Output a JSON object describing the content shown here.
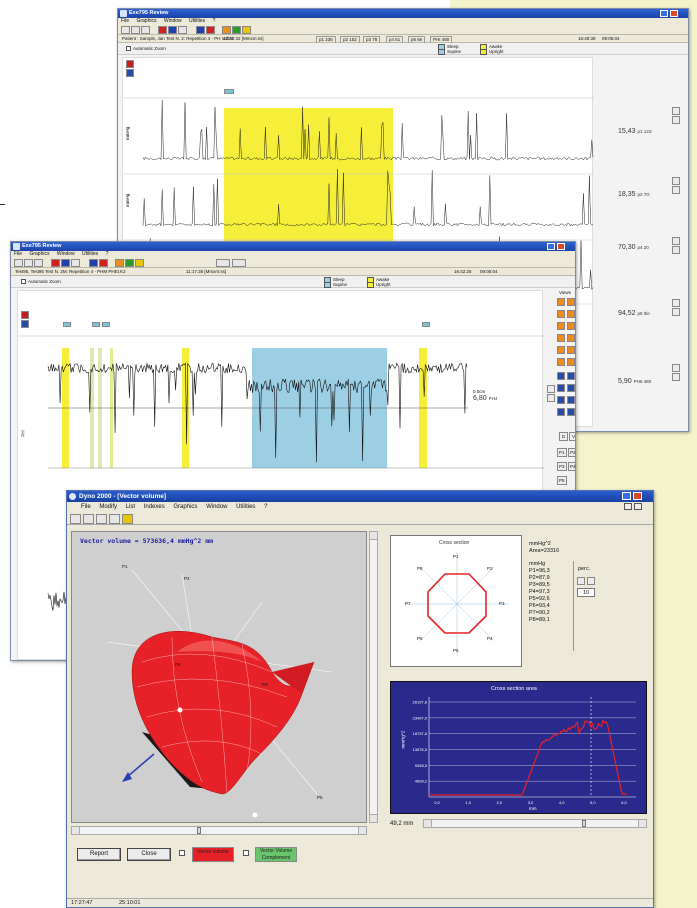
{
  "window1": {
    "title": "Exe795 Review",
    "menu": [
      "File",
      "Graphics",
      "Window",
      "Utilities",
      "?"
    ],
    "patient_info": "Patient : Sample, Jan Test N. 2: Repetition 4 - PH Voltar",
    "time1": "12:32:32 [Mmxm:ss]",
    "clock": "16:40:39",
    "date": "09:05:04",
    "sensor_tabs": [
      "p1 236",
      "p2 152",
      "p3 78",
      "p4 51",
      "p5 8e",
      "PHI 480"
    ],
    "automatic_zoom": "Automatic Zoom",
    "legend": {
      "sleep": "Sleep",
      "supine": "Supine",
      "awake": "Awake",
      "upright": "Upright"
    },
    "y_label": "mmHg",
    "tracks": [
      {
        "value": "15,43",
        "unit": "p1 12S"
      },
      {
        "value": "18,35",
        "unit": "p2 7G"
      },
      {
        "value": "70,30",
        "unit": "p4 20"
      },
      {
        "value": "94,52",
        "unit": "p5 0le"
      },
      {
        "value": "5,90",
        "unit": "PH6 480"
      }
    ]
  },
  "window2": {
    "title": "Exe795 Review",
    "menu": [
      "File",
      "Graphics",
      "Window",
      "Utilities",
      "?"
    ],
    "patient_info": "Test95, Test95 Test N. 2M: Repetition 4 - PHM PHEt.K2",
    "time1": "11:17:38 [Mmxm:ss]",
    "clock": "16:42:25",
    "date": "09:05:04",
    "automatic_zoom": "Automatic Zoom",
    "legend": {
      "sleep": "Sleep",
      "supine": "Supine",
      "awake": "Awake",
      "upright": "Upright"
    },
    "value_top": "0.0cm",
    "value": "6,80",
    "value_unit": "PH4",
    "y_label": "PH",
    "right_buttons": [
      "D",
      "V",
      "P1",
      "P2",
      "P3",
      "P4",
      "P5"
    ],
    "right_label": "Views"
  },
  "dyno": {
    "title": "Dyno 2000 - [Vector volume]",
    "menu": [
      "File",
      "Modify",
      "List",
      "Indexes",
      "Graphics",
      "Window",
      "Utilities",
      "?"
    ],
    "vector_volume_label": "Vector volume = 573636,4 mmHg^2 mm",
    "axis_labels": [
      "P1",
      "P2",
      "P3",
      "P4",
      "P5",
      "P6",
      "P7",
      "P8"
    ],
    "cross_section_title": "Cross section",
    "unit_label": "mmHg^2",
    "area_label": "Area=23316",
    "mmhg_label": "mmHg",
    "pressures": [
      "P1=96,3",
      "P2=87,9",
      "P3=89,5",
      "P4=97,3",
      "P5=92,6",
      "P6=93,4",
      "P7=90,2",
      "P8=89,1"
    ],
    "perc_label": "perc.",
    "perc_value": "10",
    "area_chart_title": "Cross section area",
    "area_y_ticks": [
      "28197,6",
      "23497,0",
      "18797,6",
      "13878,5",
      "9398,5",
      "4699,2"
    ],
    "area_y_label": "mmHg^2",
    "area_x_ticks": [
      "0,0",
      "1,0",
      "2,0",
      "3,0",
      "4,0",
      "5,0",
      "6,0"
    ],
    "area_x_label": "mm",
    "position_readout": "49,2 mm",
    "report_button": "Report",
    "close_button": "Close",
    "toggle_vector_volume": "Vector volume",
    "toggle_complement": "Vector Volume Complement",
    "status_time1": "17:27:47",
    "status_time2": "25:10:01"
  },
  "colors": {
    "yellow_band": "#f5ef3a",
    "blue_band": "#9ccfe3",
    "model_red": "#e62228",
    "area_panel_bg": "#2a2a8c",
    "area_line": "#e62228",
    "toggle_red": "#e62228",
    "toggle_green": "#69c46c"
  }
}
